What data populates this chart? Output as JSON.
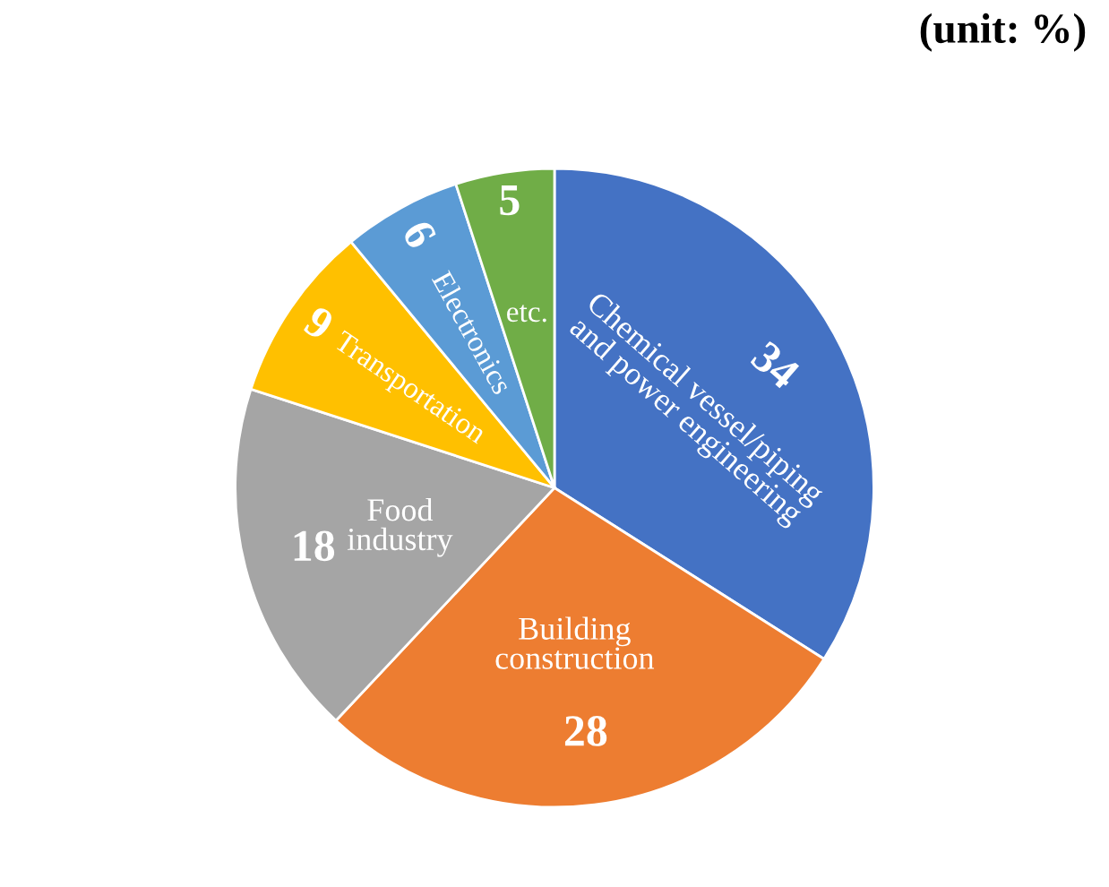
{
  "chart_data": {
    "type": "pie",
    "annotations": [
      "(unit: %)"
    ],
    "categories": [
      "Chemical vessel/piping\nand power engineering",
      "Building\nconstruction",
      "Food\nindustry",
      "Transportation",
      "Electronics",
      "etc."
    ],
    "values": [
      34,
      28,
      18,
      9,
      6,
      5
    ],
    "colors": [
      "#4472c4",
      "#ed7d31",
      "#a5a5a5",
      "#ffc000",
      "#5b9bd5",
      "#70ad47"
    ],
    "data_labels": true,
    "legend": false
  }
}
